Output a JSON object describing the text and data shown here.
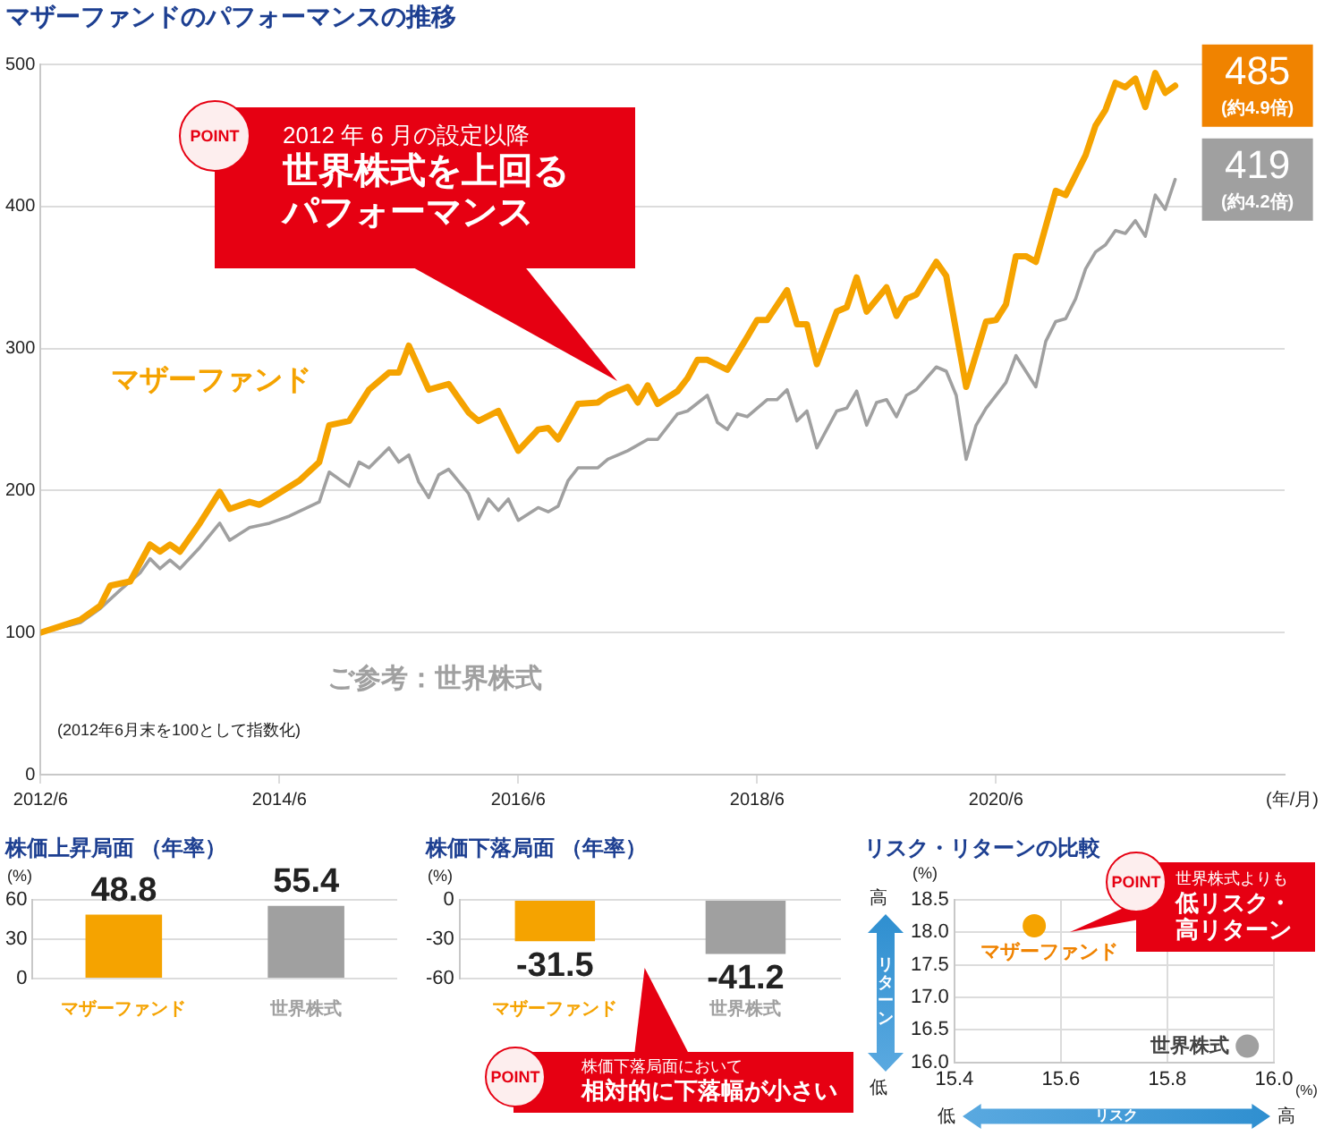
{
  "chart_data": [
    {
      "type": "line",
      "title": "マザーファンドのパフォーマンスの推移",
      "xlabel": "(年/月)",
      "xlim": [
        "2012-06",
        "2022-11"
      ],
      "xticks": [
        {
          "value": "2012-06",
          "label": "2012/6"
        },
        {
          "value": "2014-06",
          "label": "2014/6"
        },
        {
          "value": "2016-06",
          "label": "2016/6"
        },
        {
          "value": "2018-06",
          "label": "2018/6"
        },
        {
          "value": "2020-06",
          "label": "2020/6"
        }
      ],
      "ylim": [
        0,
        500
      ],
      "yticks": [
        0,
        100,
        200,
        300,
        400,
        500
      ],
      "grid": "y",
      "series": [
        {
          "name": "マザーファンド",
          "color": "#f5a300",
          "x": [
            "2012-06",
            "2012-10",
            "2012-12",
            "2013-01",
            "2013-03",
            "2013-05",
            "2013-06",
            "2013-07",
            "2013-08",
            "2013-10",
            "2013-12",
            "2014-01",
            "2014-03",
            "2014-04",
            "2014-05",
            "2014-08",
            "2014-10",
            "2014-11",
            "2015-01",
            "2015-03",
            "2015-05",
            "2015-06",
            "2015-07",
            "2015-09",
            "2015-11",
            "2016-01",
            "2016-02",
            "2016-04",
            "2016-06",
            "2016-08",
            "2016-09",
            "2016-10",
            "2016-12",
            "2017-02",
            "2017-03",
            "2017-05",
            "2017-06",
            "2017-07",
            "2017-08",
            "2017-10",
            "2017-11",
            "2017-12",
            "2018-01",
            "2018-03",
            "2018-05",
            "2018-06",
            "2018-07",
            "2018-09",
            "2018-10",
            "2018-11",
            "2018-12",
            "2019-02",
            "2019-03",
            "2019-04",
            "2019-05",
            "2019-07",
            "2019-08",
            "2019-09",
            "2019-10",
            "2019-12",
            "2020-01",
            "2020-03",
            "2020-05",
            "2020-06",
            "2020-07",
            "2020-08",
            "2020-09",
            "2020-10",
            "2020-12",
            "2021-01",
            "2021-03",
            "2021-04",
            "2021-05",
            "2021-06",
            "2021-07",
            "2021-08",
            "2021-09",
            "2021-10",
            "2021-11",
            "2021-12"
          ],
          "values": [
            100,
            109,
            119,
            133,
            136,
            162,
            157,
            162,
            157,
            177,
            199,
            187,
            192,
            190,
            194,
            207,
            220,
            246,
            249,
            271,
            283,
            283,
            302,
            271,
            275,
            255,
            249,
            256,
            228,
            243,
            244,
            236,
            261,
            262,
            267,
            273,
            262,
            274,
            261,
            270,
            279,
            292,
            292,
            285,
            308,
            320,
            320,
            341,
            317,
            317,
            289,
            326,
            329,
            350,
            326,
            343,
            323,
            335,
            338,
            361,
            351,
            273,
            319,
            320,
            331,
            365,
            365,
            361,
            411,
            408,
            436,
            457,
            468,
            487,
            484,
            490,
            470,
            494,
            480,
            485
          ]
        },
        {
          "name": "ご参考：世界株式",
          "color": "#a0a0a0",
          "x": [
            "2012-06",
            "2012-10",
            "2012-12",
            "2013-02",
            "2013-04",
            "2013-05",
            "2013-06",
            "2013-07",
            "2013-08",
            "2013-10",
            "2013-12",
            "2014-01",
            "2014-03",
            "2014-05",
            "2014-07",
            "2014-10",
            "2014-11",
            "2015-01",
            "2015-02",
            "2015-03",
            "2015-05",
            "2015-06",
            "2015-07",
            "2015-08",
            "2015-09",
            "2015-10",
            "2015-11",
            "2016-01",
            "2016-02",
            "2016-03",
            "2016-04",
            "2016-05",
            "2016-06",
            "2016-08",
            "2016-09",
            "2016-10",
            "2016-11",
            "2016-12",
            "2017-02",
            "2017-03",
            "2017-05",
            "2017-07",
            "2017-08",
            "2017-10",
            "2017-11",
            "2018-01",
            "2018-02",
            "2018-03",
            "2018-04",
            "2018-05",
            "2018-07",
            "2018-08",
            "2018-09",
            "2018-10",
            "2018-11",
            "2018-12",
            "2019-02",
            "2019-03",
            "2019-04",
            "2019-05",
            "2019-06",
            "2019-07",
            "2019-08",
            "2019-09",
            "2019-10",
            "2019-12",
            "2020-01",
            "2020-02",
            "2020-03",
            "2020-04",
            "2020-05",
            "2020-07",
            "2020-08",
            "2020-10",
            "2020-11",
            "2020-12",
            "2021-01",
            "2021-02",
            "2021-03",
            "2021-04",
            "2021-05",
            "2021-06",
            "2021-07",
            "2021-08",
            "2021-09",
            "2021-10",
            "2021-11",
            "2021-12"
          ],
          "values": [
            100,
            107,
            117,
            130,
            142,
            152,
            145,
            151,
            145,
            160,
            177,
            165,
            174,
            177,
            182,
            192,
            213,
            203,
            220,
            216,
            230,
            220,
            225,
            206,
            195,
            211,
            215,
            198,
            180,
            194,
            186,
            194,
            179,
            188,
            185,
            189,
            207,
            216,
            216,
            222,
            228,
            236,
            236,
            254,
            256,
            267,
            248,
            243,
            254,
            252,
            264,
            264,
            271,
            249,
            256,
            230,
            256,
            258,
            270,
            246,
            262,
            264,
            252,
            267,
            271,
            287,
            284,
            267,
            222,
            246,
            258,
            276,
            295,
            273,
            305,
            319,
            321,
            335,
            356,
            368,
            373,
            383,
            381,
            390,
            379,
            408,
            398,
            419
          ]
        }
      ],
      "annotations": [
        "(2012年6月末を100として指数化)",
        "POINT",
        "2012 年 6 月の設定以降",
        "世界株式を上回るパフォーマンス",
        {
          "text": "485",
          "x": "2021-12",
          "y": 485
        },
        {
          "text": "(約4.9倍)",
          "x": "2021-12",
          "y": 485
        },
        {
          "text": "419",
          "x": "2021-12",
          "y": 419
        },
        {
          "text": "(約4.2倍)",
          "x": "2021-12",
          "y": 419
        }
      ]
    },
    {
      "type": "bar",
      "title": "株価上昇局面 （年率）",
      "ylabel": "(%)",
      "categories": [
        "マザーファンド",
        "世界株式"
      ],
      "values": [
        48.8,
        55.4
      ],
      "colors": [
        "#f5a300",
        "#a0a0a0"
      ],
      "ylim": [
        0,
        60
      ],
      "yticks": [
        0,
        30,
        60
      ],
      "grid": "y",
      "data_labels": true
    },
    {
      "type": "bar",
      "title": "株価下落局面 （年率）",
      "ylabel": "(%)",
      "categories": [
        "マザーファンド",
        "世界株式"
      ],
      "values": [
        -31.5,
        -41.2
      ],
      "colors": [
        "#f5a300",
        "#a0a0a0"
      ],
      "ylim": [
        -60,
        0
      ],
      "yticks": [
        -60,
        -30,
        0
      ],
      "grid": "y",
      "data_labels": true,
      "annotations": [
        "POINT",
        "株価下落局面において",
        "相対的に下落幅が小さい"
      ]
    },
    {
      "type": "scatter",
      "title": "リスク・リターンの比較",
      "xlabel": "リスク",
      "ylabel": "リターン",
      "marker": "circle",
      "grid": true,
      "xlim": [
        15.4,
        16.0
      ],
      "xticks": [
        15.4,
        15.6,
        15.8,
        {
          "value": 16,
          "label": "16.0"
        }
      ],
      "ylim": [
        16.0,
        18.5
      ],
      "yticks": [
        {
          "value": 16,
          "label": "16.0"
        },
        16.5,
        {
          "value": 17,
          "label": "17.0"
        },
        17.5,
        {
          "value": 18,
          "label": "18.0"
        },
        18.5
      ],
      "series": [
        {
          "name": "マザーファンド",
          "color": "#f5a300",
          "x": [
            15.55
          ],
          "values": [
            18.1
          ]
        },
        {
          "name": "世界株式",
          "color": "#a0a0a0",
          "x": [
            15.95
          ],
          "values": [
            16.25
          ]
        }
      ],
      "annotations": [
        "POINT",
        "世界株式よりも",
        "低リスク・高リターン",
        "(%)",
        "高",
        "低",
        "低",
        "高",
        "(%)"
      ]
    }
  ]
}
